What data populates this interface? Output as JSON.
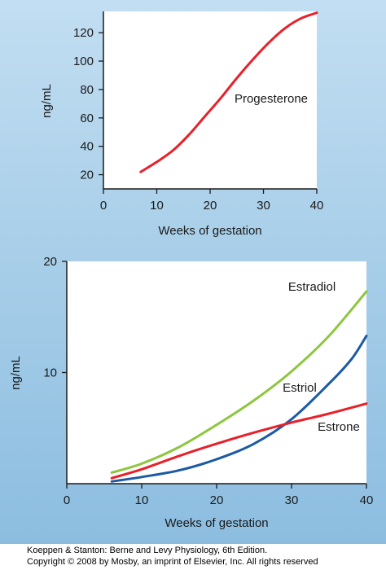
{
  "chart_data": [
    {
      "type": "line",
      "xlabel": "Weeks of gestation",
      "ylabel": "ng/mL",
      "xlim": [
        0,
        40
      ],
      "ylim": [
        10,
        135
      ],
      "xticks": [
        0,
        10,
        20,
        30,
        40
      ],
      "yticks": [
        20,
        40,
        60,
        80,
        100,
        120
      ],
      "grid": false,
      "series": [
        {
          "name": "Progesterone",
          "color": "#e8202a",
          "x": [
            7,
            10,
            13,
            16,
            19,
            22,
            25,
            28,
            31,
            34,
            37,
            40
          ],
          "y": [
            22,
            29,
            37,
            48,
            61,
            74,
            88,
            101,
            113,
            123,
            130,
            134
          ]
        }
      ]
    },
    {
      "type": "line",
      "xlabel": "Weeks of gestation",
      "ylabel": "ng/mL",
      "xlim": [
        0,
        40
      ],
      "ylim": [
        0,
        20
      ],
      "xticks": [
        0,
        10,
        20,
        30,
        40
      ],
      "yticks": [
        10,
        20
      ],
      "grid": false,
      "series": [
        {
          "name": "Estradiol",
          "color": "#8dc63f",
          "x": [
            6,
            10,
            15,
            20,
            25,
            30,
            35,
            40
          ],
          "y": [
            1.0,
            1.8,
            3.3,
            5.3,
            7.5,
            10.1,
            13.3,
            17.3
          ]
        },
        {
          "name": "Estriol",
          "color": "#1c5aa6",
          "x": [
            6,
            10,
            15,
            20,
            25,
            30,
            35,
            38,
            40
          ],
          "y": [
            0.2,
            0.6,
            1.2,
            2.2,
            3.6,
            5.8,
            9.0,
            11.2,
            13.3
          ]
        },
        {
          "name": "Estrone",
          "color": "#e8202a",
          "x": [
            6,
            10,
            15,
            20,
            25,
            30,
            35,
            40
          ],
          "y": [
            0.5,
            1.3,
            2.5,
            3.6,
            4.6,
            5.5,
            6.3,
            7.2
          ]
        }
      ]
    }
  ],
  "credit": {
    "line1": "Koeppen & Stanton: Berne and Levy Physiology, 6th Edition.",
    "line2": "Copyright © 2008 by Mosby, an imprint of Elsevier, Inc. All rights reserved"
  }
}
